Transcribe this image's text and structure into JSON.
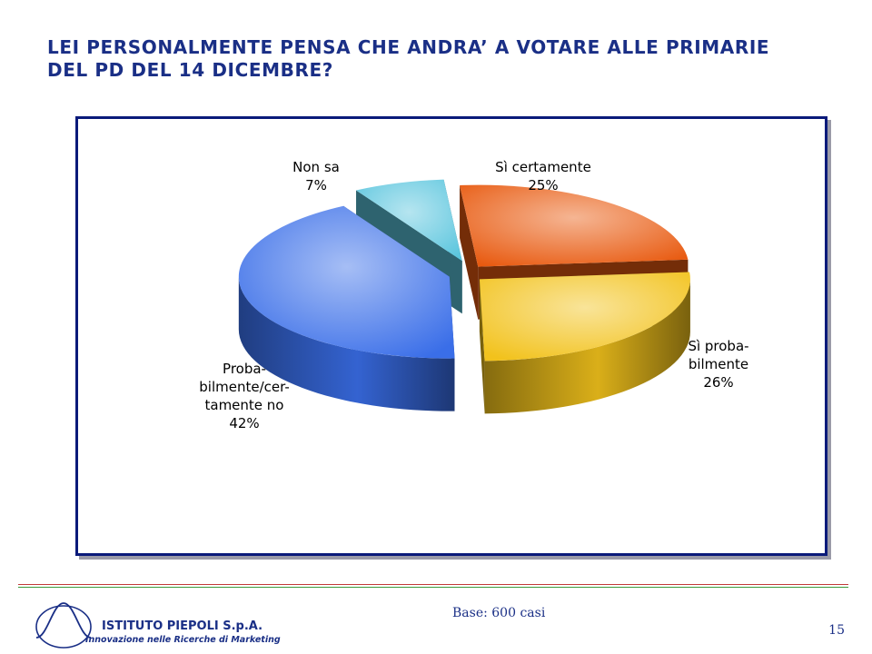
{
  "title": {
    "line1": "LEI PERSONALMENTE PENSA CHE ANDRA’ A VOTARE ALLE PRIMARIE",
    "line2": "DEL PD DEL 14 DICEMBRE?"
  },
  "chart_data": {
    "type": "pie",
    "style": "3d-exploded",
    "slices": [
      {
        "name": "Sì certamente",
        "label_lines": [
          "Sì certamente"
        ],
        "value": 25,
        "value_label": "25%",
        "color": "#e85a10"
      },
      {
        "name": "Sì probabilmente",
        "label_lines": [
          "Sì proba-",
          "bilmente"
        ],
        "value": 26,
        "value_label": "26%",
        "color": "#f2c21c"
      },
      {
        "name": "Probabilmente/certamente no",
        "label_lines": [
          "Proba-",
          "bilmente/cer-",
          "tamente no"
        ],
        "value": 42,
        "value_label": "42%",
        "color": "#3a6ee8"
      },
      {
        "name": "Non sa",
        "label_lines": [
          "Non sa"
        ],
        "value": 7,
        "value_label": "7%",
        "color": "#5cc6de"
      }
    ]
  },
  "footer": {
    "base": "Base: 600 casi",
    "page_number": "15",
    "logo_name": "ISTITUTO PIEPOLI S.p.A.",
    "logo_tagline": "Innovazione nelle Ricerche di Marketing"
  }
}
